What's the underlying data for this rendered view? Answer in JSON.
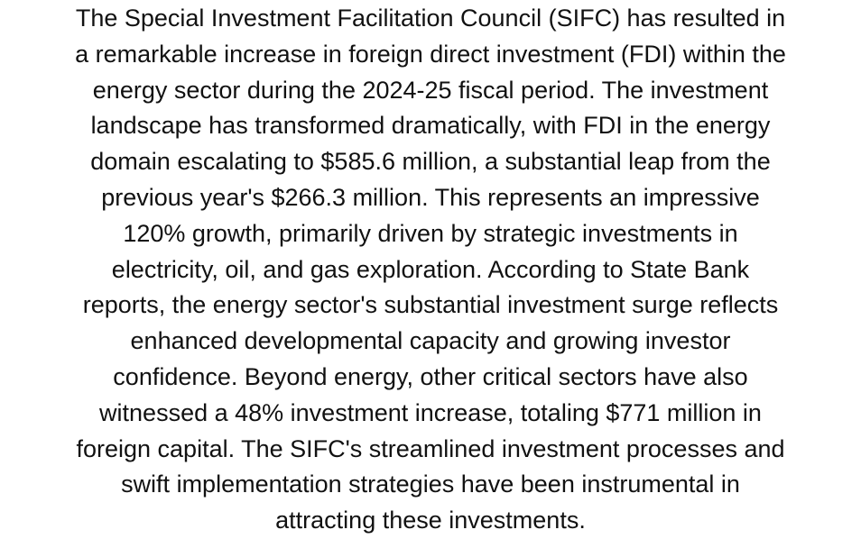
{
  "document": {
    "lines": [
      "The Special Investment Facilitation Council (SIFC) has resulted in",
      "a remarkable increase in foreign direct investment (FDI) within the",
      "energy sector during the 2024-25 fiscal period. The investment",
      "landscape has transformed dramatically, with FDI in the energy",
      "domain escalating to $585.6 million, a substantial leap from the",
      "previous year's $266.3 million. This represents an impressive",
      "120% growth, primarily driven by strategic investments in",
      "electricity, oil, and gas exploration. According to State Bank",
      "reports, the energy sector's substantial investment surge reflects",
      "enhanced developmental capacity and growing investor",
      "confidence. Beyond energy, other critical sectors have also",
      "witnessed a 48% investment increase, totaling $771 million in",
      "foreign capital. The SIFC's streamlined investment processes and",
      "swift implementation strategies have been instrumental in",
      "attracting these investments."
    ]
  }
}
